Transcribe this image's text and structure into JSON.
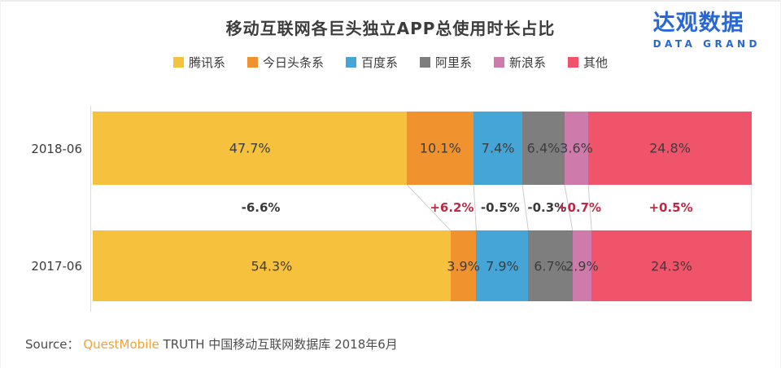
{
  "title": "移动互联网各巨头独立APP总使用时长占比",
  "logo": {
    "cn": "达观数据",
    "en": "DATA GRAND",
    "color": "#2767D6"
  },
  "source": {
    "prefix": "Source：",
    "brand": "QuestMobile",
    "rest": " TRUTH 中国移动互联网数据库 2018年6月",
    "brand_color": "#F2A33C"
  },
  "chart_data": {
    "type": "bar",
    "variant": "horizontal-stacked-100",
    "title": "移动互联网各巨头独立APP总使用时长占比",
    "legend_position": "top",
    "axis": {
      "unit": "percent",
      "range": [
        0,
        100
      ]
    },
    "categories": [
      "2018-06",
      "2017-06"
    ],
    "series": [
      {
        "name": "腾讯系",
        "color": "#F6C13C",
        "values": [
          47.7,
          54.3
        ]
      },
      {
        "name": "今日头条系",
        "color": "#F0922E",
        "values": [
          10.1,
          3.9
        ]
      },
      {
        "name": "百度系",
        "color": "#44A5D6",
        "values": [
          7.4,
          7.9
        ]
      },
      {
        "name": "阿里系",
        "color": "#7E7E7E",
        "values": [
          6.4,
          6.7
        ]
      },
      {
        "name": "新浪系",
        "color": "#CE7BAC",
        "values": [
          3.6,
          2.9
        ]
      },
      {
        "name": "其他",
        "color": "#F0546A",
        "values": [
          24.8,
          24.3
        ]
      }
    ],
    "value_suffix": "%",
    "deltas": [
      "-6.6%",
      "+6.2%",
      "-0.5%",
      "-0.3%",
      "+0.7%",
      "+0.5%"
    ],
    "delta_positive_color": "#C02844",
    "delta_negative_color": "#3A3A3A",
    "connector_color": "#CCCCCC"
  }
}
